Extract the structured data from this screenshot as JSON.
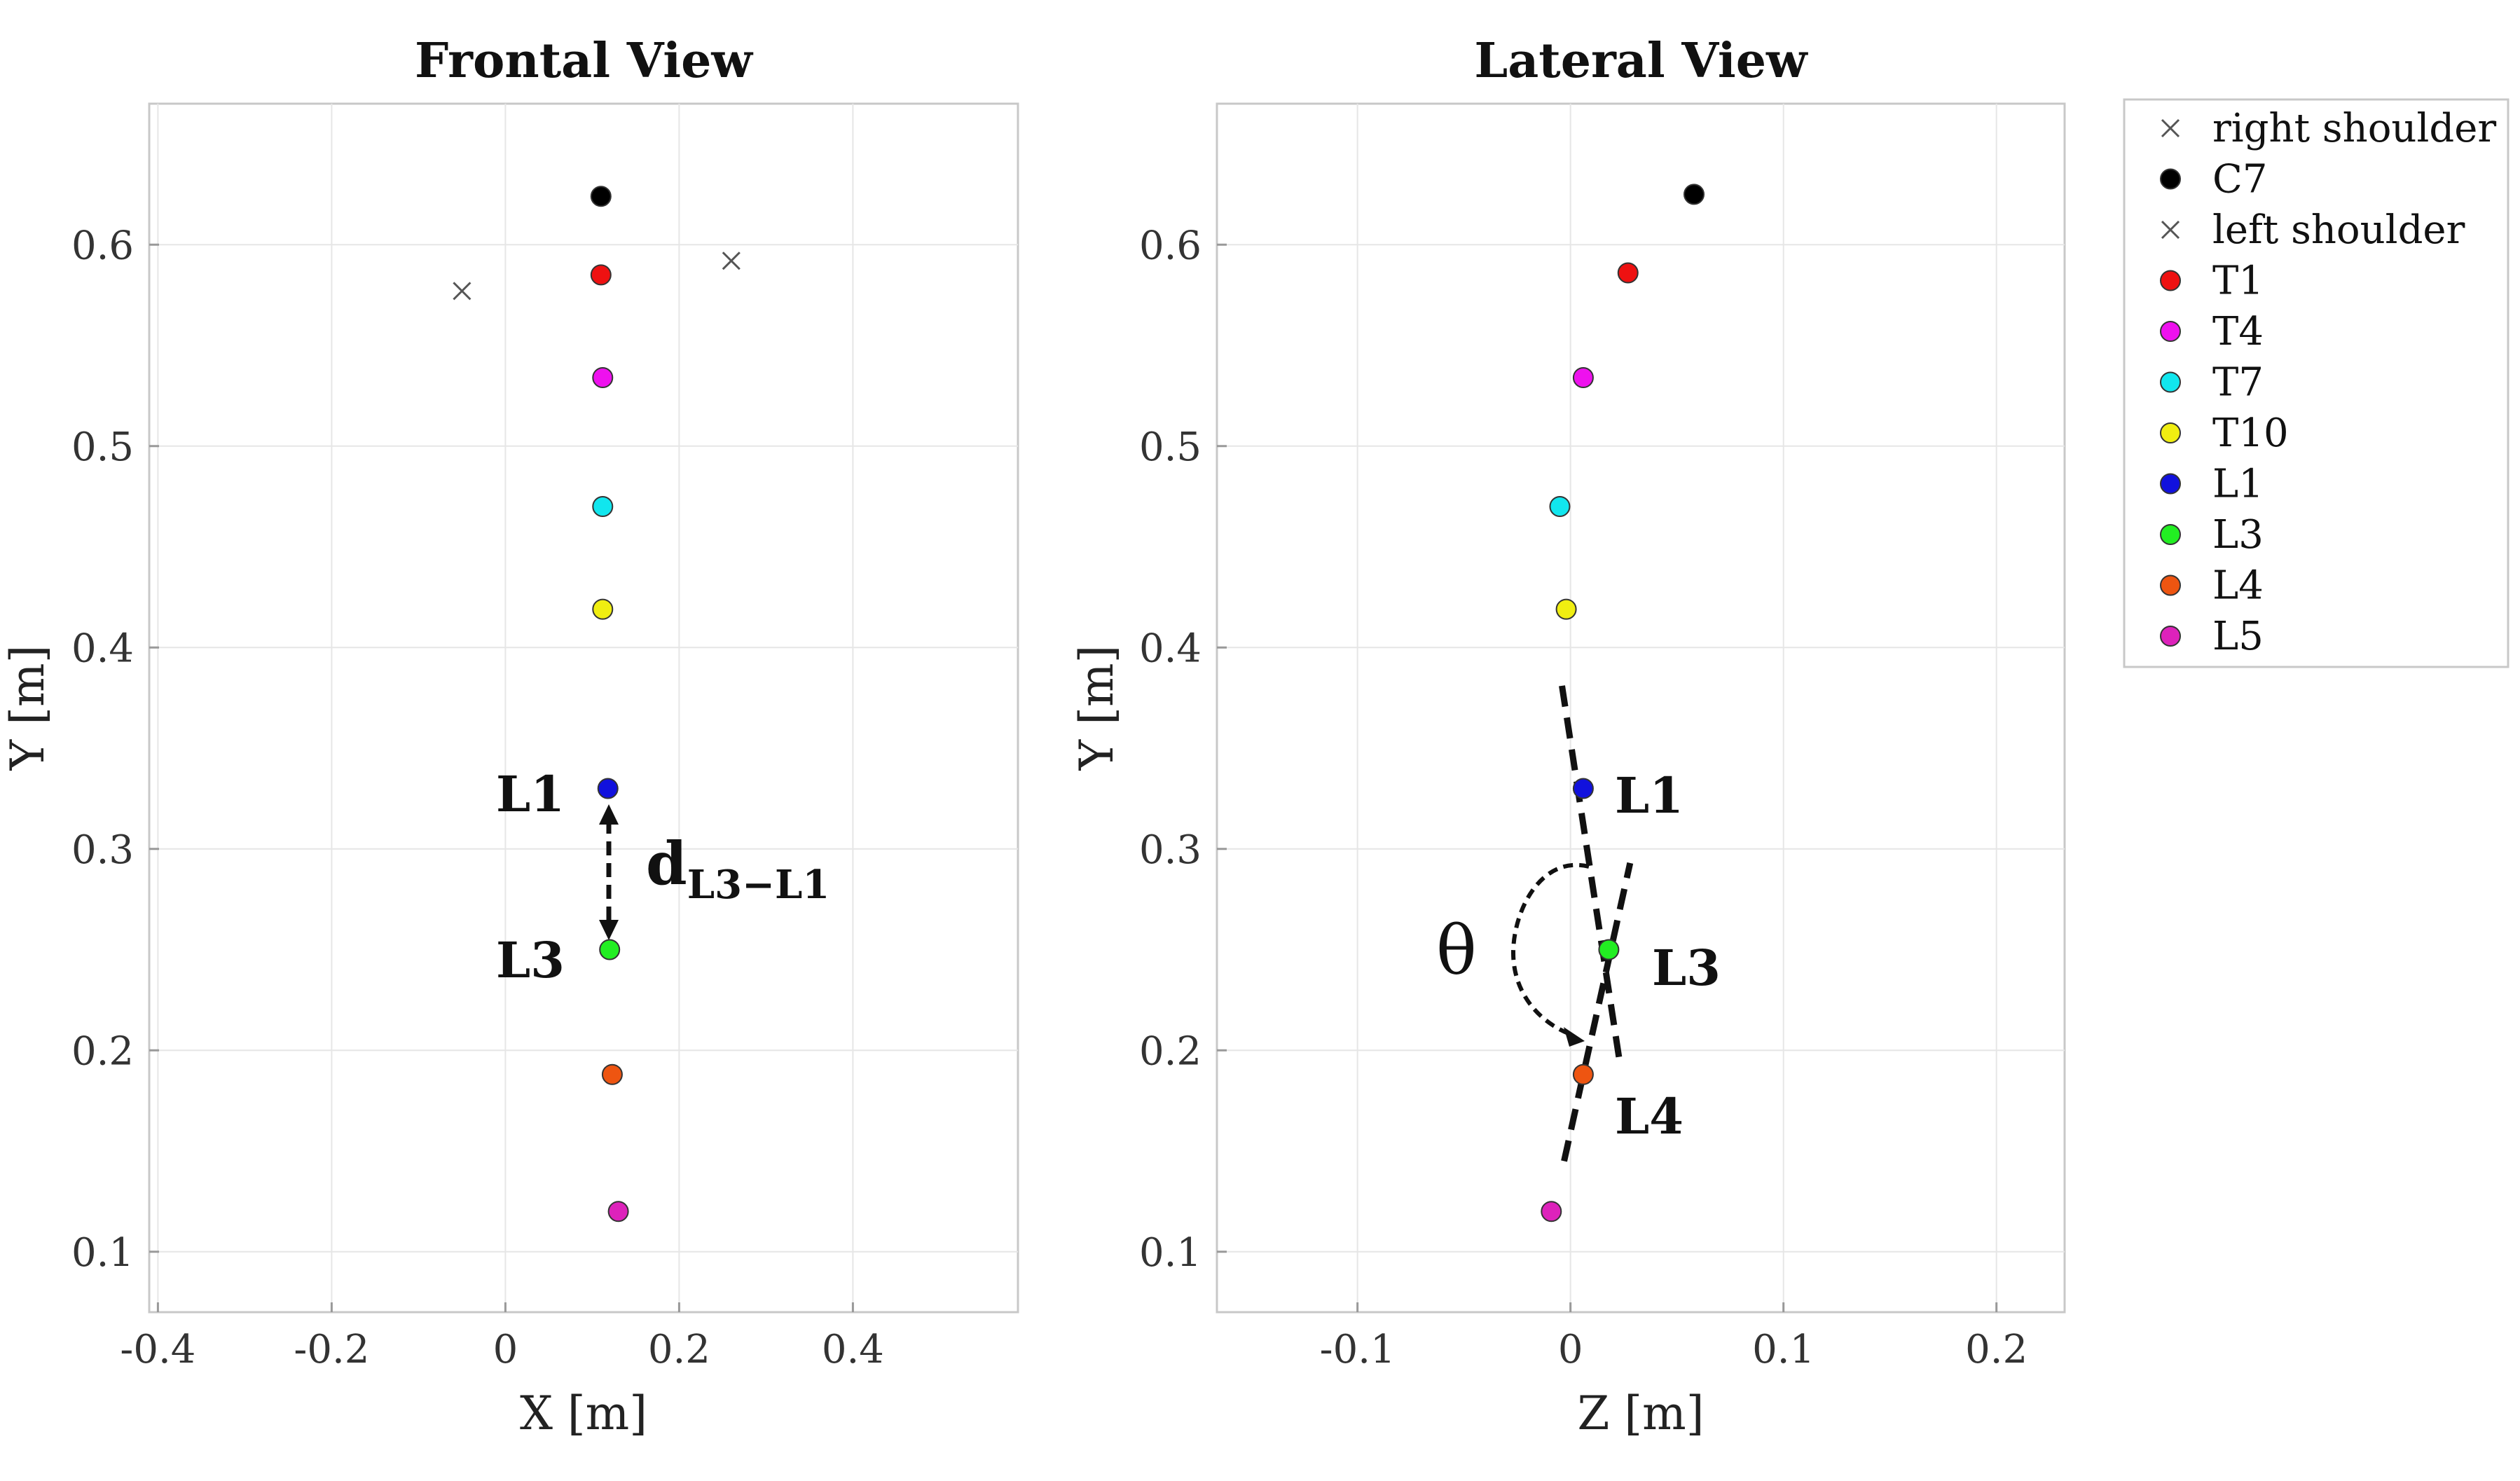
{
  "chart_data": [
    {
      "type": "scatter",
      "title": "Frontal View",
      "xlabel": "X [m]",
      "ylabel": "Y [m]",
      "xlim": [
        -0.41,
        0.59
      ],
      "ylim": [
        0.07,
        0.67
      ],
      "xticks": [
        -0.4,
        -0.2,
        0,
        0.2,
        0.4
      ],
      "xtick_labels": [
        "-0.4",
        "-0.2",
        "0",
        "0.2",
        "0.4"
      ],
      "yticks": [
        0.1,
        0.2,
        0.3,
        0.4,
        0.5,
        0.6
      ],
      "ytick_labels": [
        "0.1",
        "0.2",
        "0.3",
        "0.4",
        "0.5",
        "0.6"
      ],
      "grid": true,
      "points": [
        {
          "name": "right shoulder",
          "x": -0.05,
          "y": 0.577,
          "marker": "x",
          "color": "#555555"
        },
        {
          "name": "C7",
          "x": 0.11,
          "y": 0.624,
          "marker": "o",
          "color": "#000000"
        },
        {
          "name": "left shoulder",
          "x": 0.26,
          "y": 0.592,
          "marker": "x",
          "color": "#555555"
        },
        {
          "name": "T1",
          "x": 0.11,
          "y": 0.585,
          "marker": "o",
          "color": "#ee1111"
        },
        {
          "name": "T4",
          "x": 0.112,
          "y": 0.534,
          "marker": "o",
          "color": "#ee11ee"
        },
        {
          "name": "T7",
          "x": 0.112,
          "y": 0.47,
          "marker": "o",
          "color": "#11e6ee"
        },
        {
          "name": "T10",
          "x": 0.112,
          "y": 0.419,
          "marker": "o",
          "color": "#f0ee11"
        },
        {
          "name": "L1",
          "x": 0.118,
          "y": 0.33,
          "marker": "o",
          "color": "#1111dd"
        },
        {
          "name": "L3",
          "x": 0.12,
          "y": 0.25,
          "marker": "o",
          "color": "#22ee22"
        },
        {
          "name": "L4",
          "x": 0.123,
          "y": 0.188,
          "marker": "o",
          "color": "#ee5511"
        },
        {
          "name": "L5",
          "x": 0.13,
          "y": 0.12,
          "marker": "o",
          "color": "#dd22bb"
        }
      ],
      "annotations": {
        "label_l1": "L1",
        "label_l3": "L3",
        "distance_main": "d",
        "distance_sub": "L3−L1"
      }
    },
    {
      "type": "scatter",
      "title": "Lateral View",
      "xlabel": "Z [m]",
      "ylabel": "Y [m]",
      "xlim": [
        -0.166,
        0.232
      ],
      "ylim": [
        0.07,
        0.67
      ],
      "xticks": [
        -0.1,
        0,
        0.1,
        0.2
      ],
      "xtick_labels": [
        "-0.1",
        "0",
        "0.1",
        "0.2"
      ],
      "yticks": [
        0.1,
        0.2,
        0.3,
        0.4,
        0.5,
        0.6
      ],
      "ytick_labels": [
        "0.1",
        "0.2",
        "0.3",
        "0.4",
        "0.5",
        "0.6"
      ],
      "grid": true,
      "points": [
        {
          "name": "C7",
          "x": 0.058,
          "y": 0.625,
          "marker": "o",
          "color": "#000000"
        },
        {
          "name": "T1",
          "x": 0.027,
          "y": 0.586,
          "marker": "o",
          "color": "#ee1111"
        },
        {
          "name": "T4",
          "x": 0.006,
          "y": 0.534,
          "marker": "o",
          "color": "#ee11ee"
        },
        {
          "name": "T7",
          "x": -0.005,
          "y": 0.47,
          "marker": "o",
          "color": "#11e6ee"
        },
        {
          "name": "T10",
          "x": -0.002,
          "y": 0.419,
          "marker": "o",
          "color": "#f0ee11"
        },
        {
          "name": "L1",
          "x": 0.006,
          "y": 0.33,
          "marker": "o",
          "color": "#1111dd"
        },
        {
          "name": "L3",
          "x": 0.018,
          "y": 0.25,
          "marker": "o",
          "color": "#22ee22"
        },
        {
          "name": "L4",
          "x": 0.006,
          "y": 0.188,
          "marker": "o",
          "color": "#ee5511"
        },
        {
          "name": "L5",
          "x": -0.009,
          "y": 0.12,
          "marker": "o",
          "color": "#dd22bb"
        }
      ],
      "lines": [
        {
          "name": "L1-L3 line",
          "x": [
            -0.004,
            0.023
          ],
          "y": [
            0.381,
            0.195
          ]
        },
        {
          "name": "L3-L4 line",
          "x": [
            -0.003,
            0.028
          ],
          "y": [
            0.145,
            0.293
          ]
        }
      ],
      "annotations": {
        "label_l1": "L1",
        "label_l3": "L3",
        "label_l4": "L4",
        "angle": "θ"
      }
    }
  ],
  "legend": {
    "position": "right",
    "entries": [
      {
        "label": "right shoulder",
        "marker": "x",
        "color": "#555555"
      },
      {
        "label": "C7",
        "marker": "o",
        "color": "#000000"
      },
      {
        "label": "left shoulder",
        "marker": "x",
        "color": "#555555"
      },
      {
        "label": "T1",
        "marker": "o",
        "color": "#ee1111"
      },
      {
        "label": "T4",
        "marker": "o",
        "color": "#ee11ee"
      },
      {
        "label": "T7",
        "marker": "o",
        "color": "#11e6ee"
      },
      {
        "label": "T10",
        "marker": "o",
        "color": "#f0ee11"
      },
      {
        "label": "L1",
        "marker": "o",
        "color": "#1111dd"
      },
      {
        "label": "L3",
        "marker": "o",
        "color": "#22ee22"
      },
      {
        "label": "L4",
        "marker": "o",
        "color": "#ee5511"
      },
      {
        "label": "L5",
        "marker": "o",
        "color": "#dd22bb"
      }
    ]
  }
}
